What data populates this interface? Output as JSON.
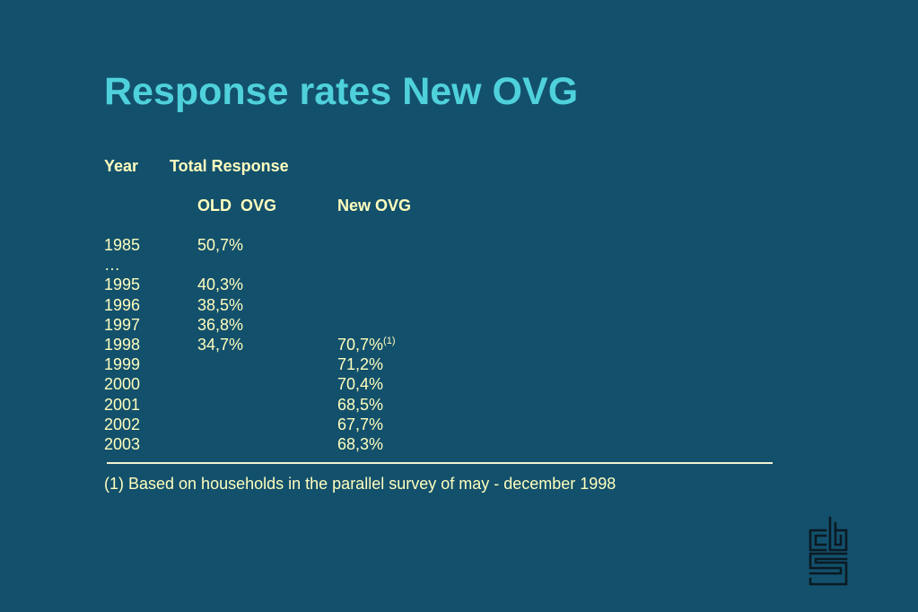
{
  "title": "Response rates New OVG",
  "header": {
    "year": "Year",
    "total_response": "Total Response",
    "old_ovg": "OLD  OVG",
    "new_ovg": "New OVG"
  },
  "rows": [
    {
      "year": "1985",
      "old": "50,7%",
      "new": "",
      "note": ""
    },
    {
      "year": "…",
      "old": "",
      "new": "",
      "note": ""
    },
    {
      "year": "1995",
      "old": "40,3%",
      "new": "",
      "note": ""
    },
    {
      "year": "1996",
      "old": "38,5%",
      "new": "",
      "note": ""
    },
    {
      "year": "1997",
      "old": "36,8%",
      "new": "",
      "note": ""
    },
    {
      "year": "1998",
      "old": "34,7%",
      "new": "70,7%",
      "note": "(1)"
    },
    {
      "year": "1999",
      "old": "",
      "new": "71,2%",
      "note": ""
    },
    {
      "year": "2000",
      "old": "",
      "new": "70,4%",
      "note": ""
    },
    {
      "year": "2001",
      "old": "",
      "new": "68,5%",
      "note": ""
    },
    {
      "year": "2002",
      "old": "",
      "new": "67,7%",
      "note": ""
    },
    {
      "year": "2003",
      "old": "",
      "new": "68,3%",
      "note": ""
    }
  ],
  "footnote": "(1) Based on households in the parallel survey of may - december 1998",
  "logo": {
    "name": "cbs-logo-icon",
    "color": "#0b1a22"
  },
  "colors": {
    "background": "#13506c",
    "title": "#4fd1db",
    "text": "#ffffbe"
  }
}
